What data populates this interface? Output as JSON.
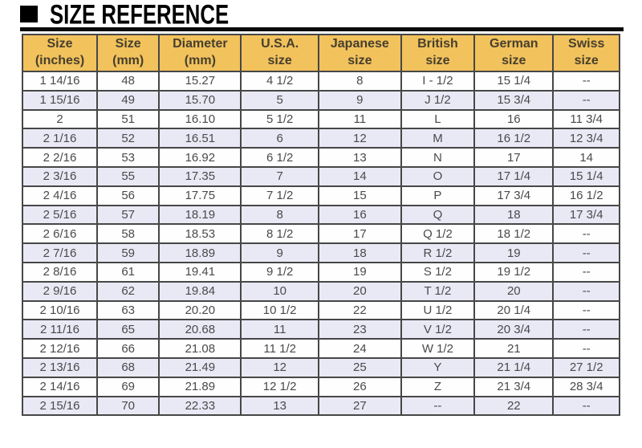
{
  "title": {
    "icon": "black-square",
    "text": "SIZE REFERENCE"
  },
  "colors": {
    "header_bg": "#F2C25C",
    "header_text": "#463F2E",
    "row_alt_bg": "#E9E9F6",
    "border": "#474747",
    "cell_text": "#4A4A4A",
    "title_text": "#000000"
  },
  "chart_data": {
    "type": "table",
    "title": "SIZE REFERENCE",
    "columns": [
      [
        "Size",
        "(inches)"
      ],
      [
        "Size",
        "(mm)"
      ],
      [
        "Diameter",
        "(mm)"
      ],
      [
        "U.S.A.",
        "size"
      ],
      [
        "Japanese",
        "size"
      ],
      [
        "British",
        "size"
      ],
      [
        "German",
        "size"
      ],
      [
        "Swiss",
        "size"
      ]
    ],
    "rows": [
      [
        "1 14/16",
        "48",
        "15.27",
        "4 1/2",
        "8",
        "I - 1/2",
        "15 1/4",
        "--"
      ],
      [
        "1 15/16",
        "49",
        "15.70",
        "5",
        "9",
        "J 1/2",
        "15 3/4",
        "--"
      ],
      [
        "2",
        "51",
        "16.10",
        "5 1/2",
        "11",
        "L",
        "16",
        "11 3/4"
      ],
      [
        "2 1/16",
        "52",
        "16.51",
        "6",
        "12",
        "M",
        "16 1/2",
        "12 3/4"
      ],
      [
        "2 2/16",
        "53",
        "16.92",
        "6 1/2",
        "13",
        "N",
        "17",
        "14"
      ],
      [
        "2 3/16",
        "55",
        "17.35",
        "7",
        "14",
        "O",
        "17 1/4",
        "15 1/4"
      ],
      [
        "2 4/16",
        "56",
        "17.75",
        "7 1/2",
        "15",
        "P",
        "17 3/4",
        "16 1/2"
      ],
      [
        "2 5/16",
        "57",
        "18.19",
        "8",
        "16",
        "Q",
        "18",
        "17 3/4"
      ],
      [
        "2 6/16",
        "58",
        "18.53",
        "8 1/2",
        "17",
        "Q 1/2",
        "18 1/2",
        "--"
      ],
      [
        "2 7/16",
        "59",
        "18.89",
        "9",
        "18",
        "R 1/2",
        "19",
        "--"
      ],
      [
        "2 8/16",
        "61",
        "19.41",
        "9 1/2",
        "19",
        "S 1/2",
        "19 1/2",
        "--"
      ],
      [
        "2 9/16",
        "62",
        "19.84",
        "10",
        "20",
        "T 1/2",
        "20",
        "--"
      ],
      [
        "2 10/16",
        "63",
        "20.20",
        "10 1/2",
        "22",
        "U 1/2",
        "20 1/4",
        "--"
      ],
      [
        "2 11/16",
        "65",
        "20.68",
        "11",
        "23",
        "V 1/2",
        "20 3/4",
        "--"
      ],
      [
        "2 12/16",
        "66",
        "21.08",
        "11 1/2",
        "24",
        "W 1/2",
        "21",
        "--"
      ],
      [
        "2 13/16",
        "68",
        "21.49",
        "12",
        "25",
        "Y",
        "21 1/4",
        "27 1/2"
      ],
      [
        "2 14/16",
        "69",
        "21.89",
        "12 1/2",
        "26",
        "Z",
        "21 3/4",
        "28 3/4"
      ],
      [
        "2 15/16",
        "70",
        "22.33",
        "13",
        "27",
        "--",
        "22",
        "--"
      ]
    ]
  }
}
